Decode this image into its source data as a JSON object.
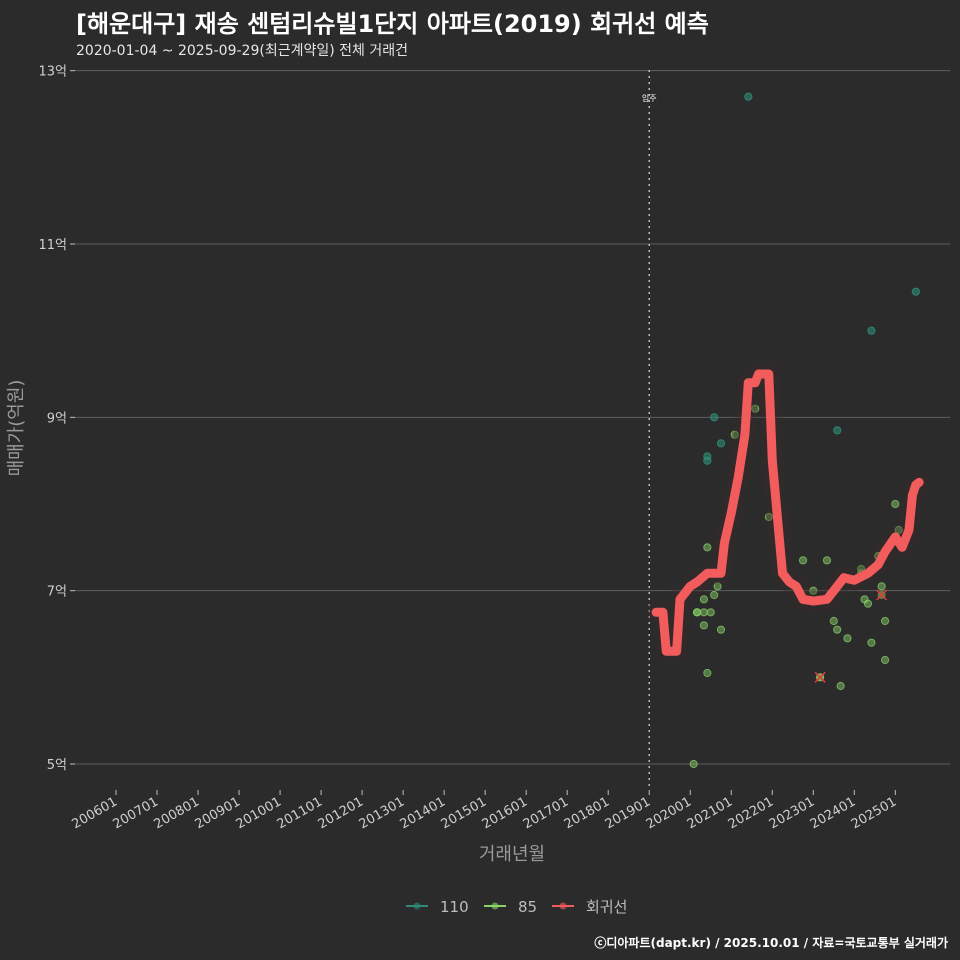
{
  "title": "[해운대구] 재송 센텀리슈빌1단지 아파트(2019) 회귀선 예측",
  "subtitle": "2020-01-04 ~ 2025-09-29(최근계약일) 전체 거래건",
  "caption": "ⓒ디아파트(dapt.kr) / 2025.10.01 / 자료=국토교통부 실거래가",
  "chart_data": {
    "type": "scatter",
    "xlabel": "거래년월",
    "ylabel": "매매가(억원)",
    "ylim": [
      4.7,
      13.1
    ],
    "xlim": [
      "2005-01",
      "2026-05"
    ],
    "yticks": [
      5,
      7,
      9,
      11,
      13
    ],
    "ytick_labels": [
      "5억",
      "7억",
      "9억",
      "11억",
      "13억"
    ],
    "xtick_labels": [
      "200601",
      "200701",
      "200801",
      "200901",
      "201001",
      "201101",
      "201201",
      "201301",
      "201401",
      "201501",
      "201601",
      "201701",
      "201801",
      "201901",
      "202001",
      "202101",
      "202201",
      "202301",
      "202401",
      "202501"
    ],
    "grid": true,
    "legend_position": "bottom",
    "annotations": [
      {
        "text": "입주",
        "x": "2019-01"
      }
    ],
    "colors": {
      "110": "#2e8b74",
      "85": "#8bd46a",
      "regression": "#f25c5c"
    },
    "series": [
      {
        "name": "110",
        "points": [
          [
            "2020-06",
            8.55
          ],
          [
            "2020-06",
            8.5
          ],
          [
            "2020-08",
            9.0
          ],
          [
            "2020-10",
            8.7
          ],
          [
            "2021-06",
            12.7
          ],
          [
            "2023-08",
            8.85
          ],
          [
            "2024-06",
            10.0
          ],
          [
            "2025-07",
            10.45
          ]
        ]
      },
      {
        "name": "85",
        "points": [
          [
            "2020-02",
            5.0
          ],
          [
            "2020-03",
            6.75
          ],
          [
            "2020-03",
            6.75
          ],
          [
            "2020-05",
            6.75
          ],
          [
            "2020-05",
            6.6
          ],
          [
            "2020-05",
            6.9
          ],
          [
            "2020-06",
            7.5
          ],
          [
            "2020-06",
            6.05
          ],
          [
            "2020-07",
            6.75
          ],
          [
            "2020-08",
            6.95
          ],
          [
            "2020-09",
            7.05
          ],
          [
            "2020-10",
            6.55
          ],
          [
            "2021-02",
            8.8
          ],
          [
            "2021-08",
            9.1
          ],
          [
            "2021-12",
            7.85
          ],
          [
            "2022-10",
            7.35
          ],
          [
            "2023-01",
            7.0
          ],
          [
            "2023-03",
            6.0
          ],
          [
            "2023-05",
            7.35
          ],
          [
            "2023-08",
            6.55
          ],
          [
            "2023-09",
            5.9
          ],
          [
            "2023-11",
            6.45
          ],
          [
            "2024-03",
            7.25
          ],
          [
            "2024-04",
            6.9
          ],
          [
            "2024-05",
            6.85
          ],
          [
            "2024-06",
            6.4
          ],
          [
            "2024-08",
            7.4
          ],
          [
            "2024-09",
            7.05
          ],
          [
            "2024-10",
            6.2
          ],
          [
            "2025-01",
            8.0
          ],
          [
            "2025-02",
            7.7
          ],
          [
            "2023-07",
            6.65
          ],
          [
            "2024-10",
            6.65
          ],
          [
            "2024-09",
            7.4
          ],
          [
            "2024-03",
            7.2
          ]
        ]
      },
      {
        "name": "회귀선",
        "points": [
          [
            "2019-03",
            6.75
          ],
          [
            "2019-05",
            6.75
          ],
          [
            "2019-06",
            6.3
          ],
          [
            "2019-09",
            6.3
          ],
          [
            "2019-10",
            6.9
          ],
          [
            "2019-12",
            7.0
          ],
          [
            "2020-01",
            7.05
          ],
          [
            "2020-03",
            7.1
          ],
          [
            "2020-06",
            7.2
          ],
          [
            "2020-10",
            7.2
          ],
          [
            "2020-11",
            7.55
          ],
          [
            "2021-01",
            7.9
          ],
          [
            "2021-03",
            8.3
          ],
          [
            "2021-05",
            8.8
          ],
          [
            "2021-06",
            9.4
          ],
          [
            "2021-08",
            9.4
          ],
          [
            "2021-09",
            9.5
          ],
          [
            "2021-12",
            9.5
          ],
          [
            "2022-01",
            8.5
          ],
          [
            "2022-04",
            7.2
          ],
          [
            "2022-06",
            7.1
          ],
          [
            "2022-08",
            7.05
          ],
          [
            "2022-10",
            6.9
          ],
          [
            "2023-01",
            6.88
          ],
          [
            "2023-05",
            6.9
          ],
          [
            "2023-07",
            7.0
          ],
          [
            "2023-10",
            7.15
          ],
          [
            "2024-01",
            7.12
          ],
          [
            "2024-05",
            7.2
          ],
          [
            "2024-08",
            7.3
          ],
          [
            "2024-10",
            7.45
          ],
          [
            "2025-01",
            7.62
          ],
          [
            "2025-03",
            7.5
          ],
          [
            "2025-05",
            7.7
          ],
          [
            "2025-06",
            8.1
          ],
          [
            "2025-07",
            8.22
          ],
          [
            "2025-08",
            8.25
          ]
        ]
      }
    ],
    "crossed_points": [
      [
        "2023-03",
        6.0
      ],
      [
        "2024-09",
        6.95
      ]
    ]
  }
}
